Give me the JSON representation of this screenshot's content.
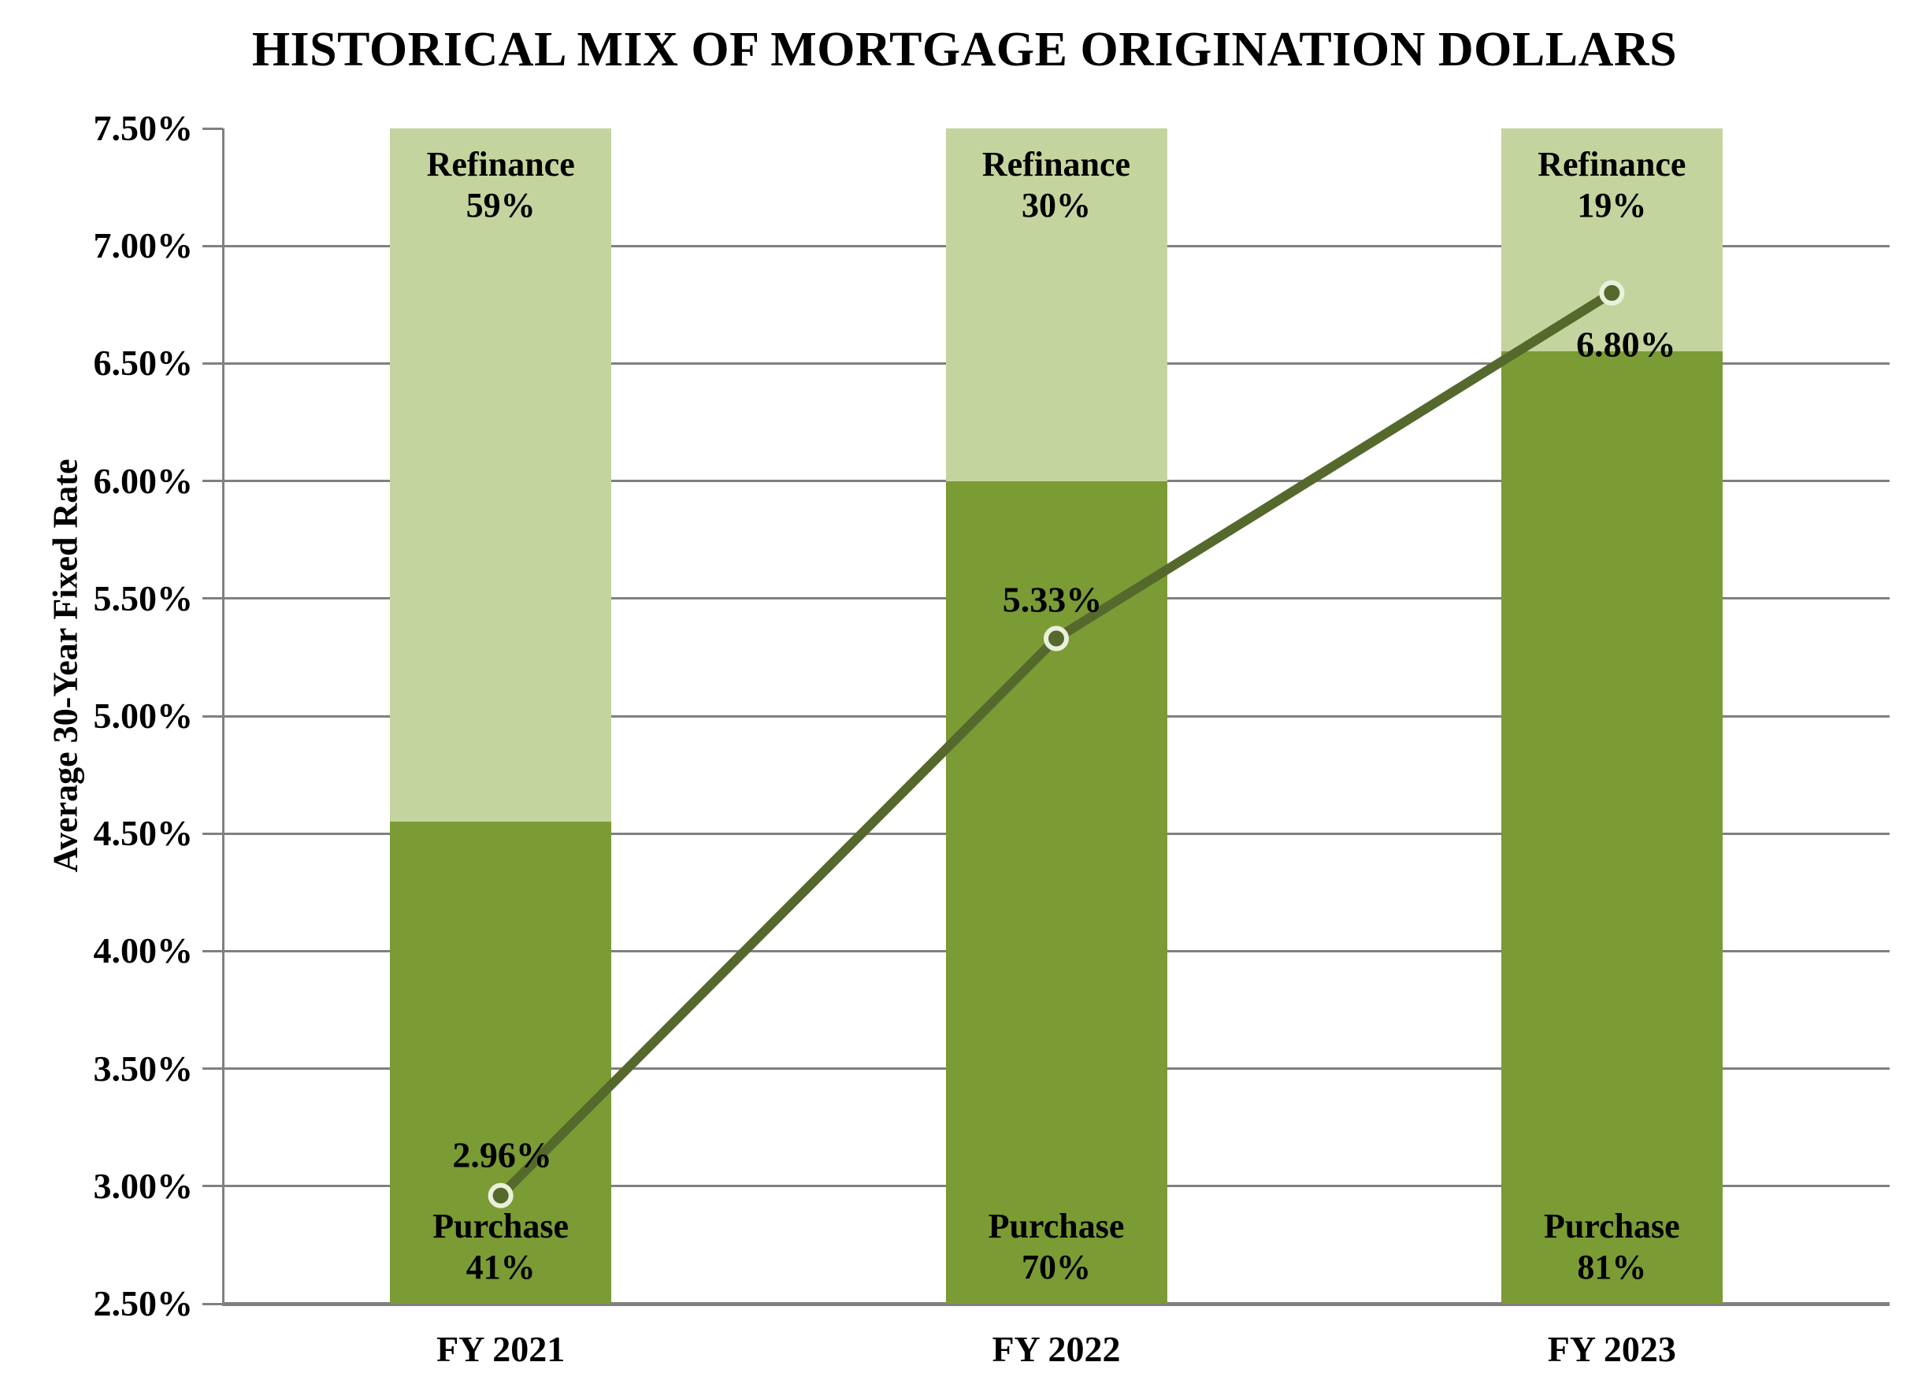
{
  "chart_data": {
    "type": "bar",
    "subtype": "full-height 100% stacked columns with overlaid line series",
    "title": "HISTORICAL MIX OF MORTGAGE ORIGINATION DOLLARS",
    "xlabel": "",
    "ylabel": "Average 30-Year Fixed Rate",
    "categories": [
      "FY 2021",
      "FY 2022",
      "FY 2023"
    ],
    "y_axis": {
      "min": 2.5,
      "max": 7.5,
      "step": 0.5,
      "tick_labels": [
        "2.50%",
        "3.00%",
        "3.50%",
        "4.00%",
        "4.50%",
        "5.00%",
        "5.50%",
        "6.00%",
        "6.50%",
        "7.00%",
        "7.50%"
      ],
      "grid": true,
      "gridlines_interior_only": true
    },
    "series": [
      {
        "name": "Purchase",
        "type": "bar-bottom-segment",
        "values_pct": [
          41,
          70,
          81
        ],
        "labels": [
          "41%",
          "70%",
          "81%"
        ],
        "color": "#7B9B35"
      },
      {
        "name": "Refinance",
        "type": "bar-top-segment",
        "values_pct": [
          59,
          30,
          19
        ],
        "labels": [
          "59%",
          "30%",
          "19%"
        ],
        "color": "#C4D49E"
      }
    ],
    "line_series": {
      "name": "Average 30-Year Fixed Rate",
      "values": [
        2.96,
        5.33,
        6.8
      ],
      "data_labels": [
        "2.96%",
        "5.33%",
        "6.80%"
      ],
      "color": "#55692D",
      "marker_fill": "#55692D",
      "marker_ring_color": "#EAF0DC"
    },
    "colors": {
      "background": "#FFFFFF",
      "grid": "#808080",
      "axis": "#808080",
      "text": "#000000"
    },
    "legend": "none"
  }
}
